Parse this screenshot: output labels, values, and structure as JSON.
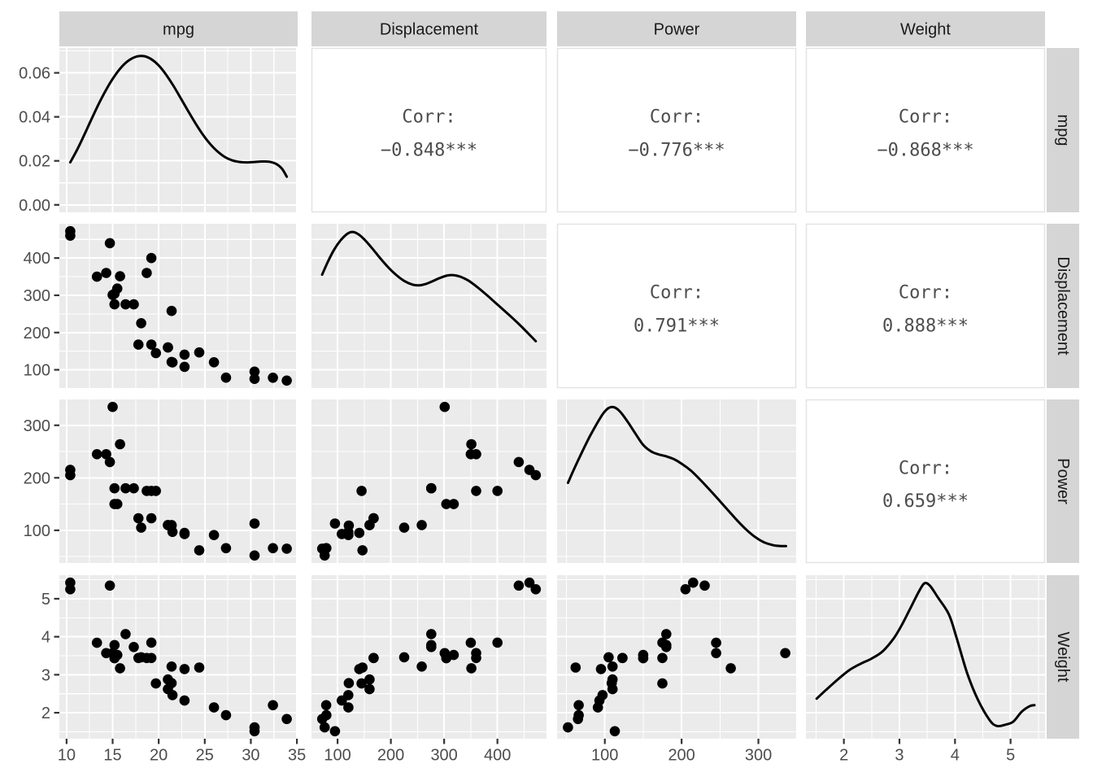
{
  "chart_data": {
    "type": "scatter",
    "subtype": "scatterplot-matrix-ggpairs",
    "title": "",
    "grid": "on",
    "matrix_layout": {
      "diagonal": "density",
      "upper_triangle": "correlation-text",
      "lower_triangle": "scatter"
    },
    "variables": [
      {
        "key": "mpg",
        "label": "mpg",
        "range": [
          9.22,
          35.08
        ],
        "ticks": [
          10,
          15,
          20,
          25,
          30,
          35
        ],
        "tick_labels": [
          "10",
          "15",
          "20",
          "25",
          "30",
          "35"
        ],
        "minor": [
          12.5,
          17.5,
          22.5,
          27.5,
          32.5
        ]
      },
      {
        "key": "disp",
        "label": "Displacement",
        "range": [
          51.0,
          492.1
        ],
        "ticks": [
          100,
          200,
          300,
          400
        ],
        "tick_labels": [
          "100",
          "200",
          "300",
          "400"
        ],
        "minor": [
          150,
          250,
          350,
          450
        ]
      },
      {
        "key": "hp",
        "label": "Power",
        "range": [
          37.8,
          349.2
        ],
        "ticks": [
          100,
          200,
          300
        ],
        "tick_labels": [
          "100",
          "200",
          "300"
        ],
        "minor": [
          50,
          150,
          250
        ]
      },
      {
        "key": "wt",
        "label": "Weight",
        "range": [
          1.317,
          5.62
        ],
        "ticks": [
          2,
          3,
          4,
          5
        ],
        "tick_labels": [
          "2",
          "3",
          "4",
          "5"
        ],
        "minor": [
          1.5,
          2.5,
          3.5,
          4.5,
          5.5
        ]
      }
    ],
    "density_axis": {
      "row": "mpg",
      "range": [
        -0.0034,
        0.0713
      ],
      "ticks": [
        0,
        0.02,
        0.04,
        0.06
      ],
      "tick_labels": [
        "0.00",
        "0.02",
        "0.04",
        "0.06"
      ],
      "minor": [
        0.01,
        0.03,
        0.05,
        0.07
      ]
    },
    "correlations": [
      {
        "row": "mpg",
        "col": "disp",
        "line1": "Corr:",
        "line2": "−0.848***"
      },
      {
        "row": "mpg",
        "col": "hp",
        "line1": "Corr:",
        "line2": "−0.776***"
      },
      {
        "row": "mpg",
        "col": "wt",
        "line1": "Corr:",
        "line2": "−0.868***"
      },
      {
        "row": "disp",
        "col": "hp",
        "line1": "Corr:",
        "line2": "0.791***"
      },
      {
        "row": "disp",
        "col": "wt",
        "line1": "Corr:",
        "line2": "0.888***"
      },
      {
        "row": "hp",
        "col": "wt",
        "line1": "Corr:",
        "line2": "0.659***"
      }
    ],
    "observations": [
      {
        "mpg": 21.0,
        "disp": 160.0,
        "hp": 110,
        "wt": 2.62
      },
      {
        "mpg": 21.0,
        "disp": 160.0,
        "hp": 110,
        "wt": 2.875
      },
      {
        "mpg": 22.8,
        "disp": 108.0,
        "hp": 93,
        "wt": 2.32
      },
      {
        "mpg": 21.4,
        "disp": 258.0,
        "hp": 110,
        "wt": 3.215
      },
      {
        "mpg": 18.7,
        "disp": 360.0,
        "hp": 175,
        "wt": 3.44
      },
      {
        "mpg": 18.1,
        "disp": 225.0,
        "hp": 105,
        "wt": 3.46
      },
      {
        "mpg": 14.3,
        "disp": 360.0,
        "hp": 245,
        "wt": 3.57
      },
      {
        "mpg": 24.4,
        "disp": 146.7,
        "hp": 62,
        "wt": 3.19
      },
      {
        "mpg": 22.8,
        "disp": 140.8,
        "hp": 95,
        "wt": 3.15
      },
      {
        "mpg": 19.2,
        "disp": 167.6,
        "hp": 123,
        "wt": 3.44
      },
      {
        "mpg": 17.8,
        "disp": 167.6,
        "hp": 123,
        "wt": 3.44
      },
      {
        "mpg": 16.4,
        "disp": 275.8,
        "hp": 180,
        "wt": 4.07
      },
      {
        "mpg": 17.3,
        "disp": 275.8,
        "hp": 180,
        "wt": 3.73
      },
      {
        "mpg": 15.2,
        "disp": 275.8,
        "hp": 180,
        "wt": 3.78
      },
      {
        "mpg": 10.4,
        "disp": 472.0,
        "hp": 205,
        "wt": 5.25
      },
      {
        "mpg": 10.4,
        "disp": 460.0,
        "hp": 215,
        "wt": 5.424
      },
      {
        "mpg": 14.7,
        "disp": 440.0,
        "hp": 230,
        "wt": 5.345
      },
      {
        "mpg": 32.4,
        "disp": 78.7,
        "hp": 66,
        "wt": 2.2
      },
      {
        "mpg": 30.4,
        "disp": 75.7,
        "hp": 52,
        "wt": 1.615
      },
      {
        "mpg": 33.9,
        "disp": 71.1,
        "hp": 65,
        "wt": 1.835
      },
      {
        "mpg": 21.5,
        "disp": 120.1,
        "hp": 97,
        "wt": 2.465
      },
      {
        "mpg": 15.5,
        "disp": 318.0,
        "hp": 150,
        "wt": 3.52
      },
      {
        "mpg": 15.2,
        "disp": 304.0,
        "hp": 150,
        "wt": 3.435
      },
      {
        "mpg": 13.3,
        "disp": 350.0,
        "hp": 245,
        "wt": 3.84
      },
      {
        "mpg": 19.2,
        "disp": 400.0,
        "hp": 175,
        "wt": 3.845
      },
      {
        "mpg": 27.3,
        "disp": 79.0,
        "hp": 66,
        "wt": 1.935
      },
      {
        "mpg": 26.0,
        "disp": 120.3,
        "hp": 91,
        "wt": 2.14
      },
      {
        "mpg": 30.4,
        "disp": 95.1,
        "hp": 113,
        "wt": 1.513
      },
      {
        "mpg": 15.8,
        "disp": 351.0,
        "hp": 264,
        "wt": 3.17
      },
      {
        "mpg": 19.7,
        "disp": 145.0,
        "hp": 175,
        "wt": 2.77
      },
      {
        "mpg": 15.0,
        "disp": 301.0,
        "hp": 335,
        "wt": 3.57
      },
      {
        "mpg": 21.4,
        "disp": 121.0,
        "hp": 109,
        "wt": 2.78
      }
    ],
    "densities": {
      "mpg": [
        [
          10.4,
          0.0193
        ],
        [
          11.2,
          0.0255
        ],
        [
          12.0,
          0.0325
        ],
        [
          12.8,
          0.0398
        ],
        [
          13.6,
          0.0468
        ],
        [
          14.4,
          0.0531
        ],
        [
          15.2,
          0.0585
        ],
        [
          16.0,
          0.0628
        ],
        [
          16.8,
          0.0658
        ],
        [
          17.6,
          0.0674
        ],
        [
          18.4,
          0.0676
        ],
        [
          19.2,
          0.0662
        ],
        [
          20.0,
          0.0634
        ],
        [
          20.8,
          0.0592
        ],
        [
          21.6,
          0.0541
        ],
        [
          22.4,
          0.0484
        ],
        [
          23.2,
          0.0426
        ],
        [
          24.0,
          0.037
        ],
        [
          24.8,
          0.0319
        ],
        [
          25.6,
          0.0276
        ],
        [
          26.4,
          0.0242
        ],
        [
          27.2,
          0.0217
        ],
        [
          28.0,
          0.0202
        ],
        [
          28.8,
          0.0195
        ],
        [
          29.6,
          0.0193
        ],
        [
          30.4,
          0.0195
        ],
        [
          31.2,
          0.0197
        ],
        [
          32.0,
          0.0196
        ],
        [
          32.8,
          0.0185
        ],
        [
          33.4,
          0.0163
        ],
        [
          33.9,
          0.0128
        ]
      ],
      "disp": [
        [
          71,
          0.69
        ],
        [
          82,
          0.77
        ],
        [
          94,
          0.845
        ],
        [
          106,
          0.9
        ],
        [
          118,
          0.938
        ],
        [
          128,
          0.95
        ],
        [
          138,
          0.938
        ],
        [
          150,
          0.905
        ],
        [
          165,
          0.85
        ],
        [
          180,
          0.79
        ],
        [
          195,
          0.735
        ],
        [
          210,
          0.688
        ],
        [
          225,
          0.652
        ],
        [
          240,
          0.63
        ],
        [
          252,
          0.625
        ],
        [
          264,
          0.632
        ],
        [
          278,
          0.65
        ],
        [
          292,
          0.67
        ],
        [
          306,
          0.685
        ],
        [
          318,
          0.687
        ],
        [
          330,
          0.678
        ],
        [
          345,
          0.655
        ],
        [
          360,
          0.62
        ],
        [
          378,
          0.572
        ],
        [
          396,
          0.52
        ],
        [
          414,
          0.468
        ],
        [
          432,
          0.415
        ],
        [
          452,
          0.352
        ],
        [
          472,
          0.285
        ]
      ],
      "hp": [
        [
          52,
          0.49
        ],
        [
          60,
          0.575
        ],
        [
          70,
          0.675
        ],
        [
          80,
          0.77
        ],
        [
          90,
          0.855
        ],
        [
          98,
          0.915
        ],
        [
          105,
          0.948
        ],
        [
          112,
          0.952
        ],
        [
          120,
          0.925
        ],
        [
          130,
          0.862
        ],
        [
          140,
          0.79
        ],
        [
          150,
          0.722
        ],
        [
          160,
          0.683
        ],
        [
          170,
          0.664
        ],
        [
          180,
          0.652
        ],
        [
          190,
          0.635
        ],
        [
          200,
          0.607
        ],
        [
          212,
          0.565
        ],
        [
          224,
          0.51
        ],
        [
          236,
          0.45
        ],
        [
          248,
          0.388
        ],
        [
          260,
          0.325
        ],
        [
          272,
          0.262
        ],
        [
          284,
          0.205
        ],
        [
          296,
          0.158
        ],
        [
          308,
          0.125
        ],
        [
          320,
          0.108
        ],
        [
          328,
          0.104
        ],
        [
          336,
          0.103
        ]
      ],
      "wt": [
        [
          1.51,
          0.245
        ],
        [
          1.7,
          0.305
        ],
        [
          1.9,
          0.365
        ],
        [
          2.1,
          0.42
        ],
        [
          2.3,
          0.458
        ],
        [
          2.5,
          0.49
        ],
        [
          2.7,
          0.535
        ],
        [
          2.9,
          0.615
        ],
        [
          3.05,
          0.7
        ],
        [
          3.2,
          0.8
        ],
        [
          3.35,
          0.9
        ],
        [
          3.45,
          0.95
        ],
        [
          3.55,
          0.935
        ],
        [
          3.7,
          0.86
        ],
        [
          3.89,
          0.76
        ],
        [
          4.03,
          0.615
        ],
        [
          4.22,
          0.4
        ],
        [
          4.41,
          0.24
        ],
        [
          4.62,
          0.115
        ],
        [
          4.75,
          0.078
        ],
        [
          4.9,
          0.085
        ],
        [
          5.05,
          0.105
        ],
        [
          5.2,
          0.165
        ],
        [
          5.35,
          0.2
        ],
        [
          5.43,
          0.205
        ]
      ]
    },
    "style": {
      "background": "#FFFFFF",
      "panel_bg": "#EBEBEB",
      "strip_bg": "#D5D5D5",
      "grid": "#FFFFFF",
      "point": "#000000",
      "curve": "#000000",
      "axis_text": "#4D4D4D",
      "strip_text": "#1A1A1A",
      "corr_text": "#4D4D4D",
      "corr_panel_bg": "#FFFFFF",
      "corr_panel_border": "#E3E3E3",
      "tick": "#333333"
    }
  }
}
